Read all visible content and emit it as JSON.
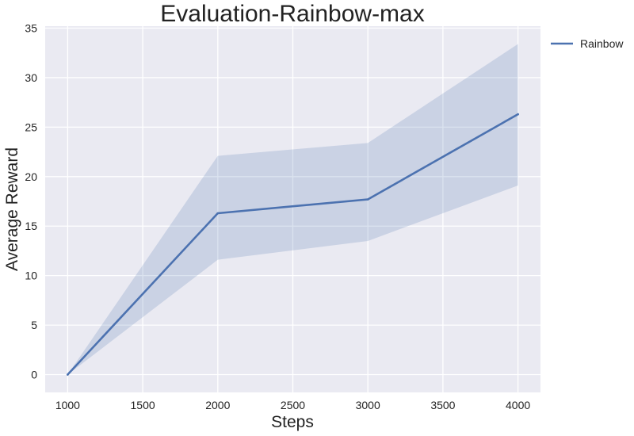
{
  "chart_data": {
    "type": "line",
    "title": "Evaluation-Rainbow-max",
    "xlabel": "Steps",
    "ylabel": "Average Reward",
    "x": [
      1000,
      2000,
      3000,
      4000
    ],
    "series": [
      {
        "name": "Rainbow",
        "values": [
          0,
          16.3,
          17.7,
          26.3
        ],
        "lower": [
          0,
          11.6,
          13.5,
          19.1
        ],
        "upper": [
          0,
          22.1,
          23.4,
          33.4
        ],
        "color": "#4c72b0"
      }
    ],
    "xlim": [
      850,
      4150
    ],
    "ylim": [
      -1.8,
      35.2
    ],
    "xticks": [
      1000,
      1500,
      2000,
      2500,
      3000,
      3500,
      4000
    ],
    "yticks": [
      0,
      5,
      10,
      15,
      20,
      25,
      30,
      35
    ],
    "grid": true,
    "legend_position": "outside-top-right",
    "background_color": "#eaeaf2",
    "grid_color": "#ffffff"
  }
}
